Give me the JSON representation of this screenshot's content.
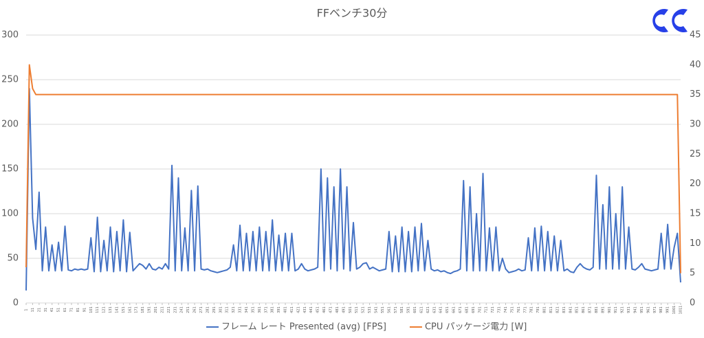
{
  "chart_data": {
    "type": "line",
    "title": "FFベンチ30分",
    "x": [
      1,
      6,
      11,
      16,
      21,
      26,
      31,
      36,
      41,
      46,
      51,
      56,
      61,
      66,
      71,
      76,
      81,
      86,
      91,
      96,
      101,
      106,
      111,
      116,
      121,
      126,
      131,
      136,
      141,
      146,
      151,
      156,
      161,
      166,
      171,
      176,
      181,
      186,
      191,
      196,
      201,
      206,
      211,
      216,
      221,
      226,
      231,
      236,
      241,
      246,
      251,
      256,
      261,
      266,
      271,
      276,
      281,
      286,
      291,
      296,
      301,
      306,
      311,
      316,
      321,
      326,
      331,
      336,
      341,
      346,
      351,
      356,
      361,
      366,
      371,
      376,
      381,
      386,
      391,
      396,
      401,
      406,
      411,
      416,
      421,
      426,
      431,
      436,
      441,
      446,
      451,
      456,
      461,
      466,
      471,
      476,
      481,
      486,
      491,
      496,
      501,
      506,
      511,
      516,
      521,
      526,
      531,
      536,
      541,
      546,
      551,
      556,
      561,
      566,
      571,
      576,
      581,
      586,
      591,
      596,
      601,
      606,
      611,
      616,
      621,
      626,
      631,
      636,
      641,
      646,
      651,
      656,
      661,
      666,
      671,
      676,
      681,
      686,
      691,
      696,
      701,
      706,
      711,
      716,
      721,
      726,
      731,
      736,
      741,
      746,
      751,
      756,
      761,
      766,
      771,
      776,
      781,
      786,
      791,
      796,
      801,
      806,
      811,
      816,
      821,
      826,
      831,
      836,
      841,
      846,
      851,
      856,
      861,
      866,
      871,
      876,
      881,
      886,
      891,
      896,
      901,
      906,
      911,
      916,
      921,
      926,
      931,
      936,
      941,
      946,
      951,
      956,
      961,
      966,
      971,
      976,
      981,
      986,
      991,
      996,
      1001,
      1006,
      1011
    ],
    "series": [
      {
        "name": "フレーム レート Presented (avg) [FPS]",
        "color": "#4472c4",
        "values": [
          14,
          240,
          95,
          60,
          124,
          36,
          85,
          36,
          65,
          36,
          68,
          36,
          86,
          37,
          36,
          38,
          37,
          38,
          37,
          38,
          73,
          35,
          96,
          35,
          70,
          36,
          85,
          35,
          80,
          36,
          93,
          35,
          79,
          36,
          40,
          44,
          42,
          38,
          44,
          38,
          37,
          40,
          38,
          44,
          38,
          154,
          36,
          140,
          36,
          84,
          36,
          126,
          36,
          131,
          38,
          37,
          38,
          36,
          35,
          34,
          35,
          36,
          37,
          40,
          65,
          36,
          87,
          36,
          78,
          36,
          80,
          36,
          85,
          36,
          80,
          36,
          93,
          36,
          76,
          36,
          78,
          36,
          78,
          36,
          38,
          44,
          38,
          36,
          37,
          38,
          40,
          150,
          36,
          140,
          38,
          130,
          36,
          150,
          38,
          130,
          36,
          90,
          38,
          40,
          44,
          45,
          38,
          40,
          38,
          36,
          37,
          38,
          80,
          35,
          75,
          35,
          85,
          35,
          80,
          35,
          85,
          36,
          89,
          36,
          70,
          38,
          36,
          37,
          35,
          36,
          34,
          33,
          35,
          36,
          38,
          137,
          36,
          130,
          36,
          100,
          36,
          145,
          36,
          84,
          36,
          85,
          36,
          50,
          38,
          34,
          35,
          36,
          38,
          36,
          37,
          73,
          36,
          84,
          36,
          86,
          36,
          80,
          36,
          75,
          36,
          70,
          36,
          38,
          35,
          34,
          40,
          44,
          40,
          38,
          37,
          40,
          143,
          38,
          110,
          38,
          130,
          38,
          100,
          38,
          130,
          38,
          85,
          38,
          37,
          40,
          44,
          38,
          37,
          36,
          37,
          38,
          78,
          38,
          88,
          38,
          62,
          78,
          23
        ]
      },
      {
        "name": "CPU パッケージ電力 [W]",
        "color": "#ed7d31",
        "axis": "y2",
        "values": [
          6,
          40,
          36,
          35,
          35,
          35,
          35,
          35,
          35,
          35,
          35,
          35,
          35,
          35,
          35,
          35,
          35,
          35,
          35,
          35,
          35,
          35,
          35,
          35,
          35,
          35,
          35,
          35,
          35,
          35,
          35,
          35,
          35,
          35,
          35,
          35,
          35,
          35,
          35,
          35,
          35,
          35,
          35,
          35,
          35,
          35,
          35,
          35,
          35,
          35,
          35,
          35,
          35,
          35,
          35,
          35,
          35,
          35,
          35,
          35,
          35,
          35,
          35,
          35,
          35,
          35,
          35,
          35,
          35,
          35,
          35,
          35,
          35,
          35,
          35,
          35,
          35,
          35,
          35,
          35,
          35,
          35,
          35,
          35,
          35,
          35,
          35,
          35,
          35,
          35,
          35,
          35,
          35,
          35,
          35,
          35,
          35,
          35,
          35,
          35,
          35,
          35,
          35,
          35,
          35,
          35,
          35,
          35,
          35,
          35,
          35,
          35,
          35,
          35,
          35,
          35,
          35,
          35,
          35,
          35,
          35,
          35,
          35,
          35,
          35,
          35,
          35,
          35,
          35,
          35,
          35,
          35,
          35,
          35,
          35,
          35,
          35,
          35,
          35,
          35,
          35,
          35,
          35,
          35,
          35,
          35,
          35,
          35,
          35,
          35,
          35,
          35,
          35,
          35,
          35,
          35,
          35,
          35,
          35,
          35,
          35,
          35,
          35,
          35,
          35,
          35,
          35,
          35,
          35,
          35,
          35,
          35,
          35,
          35,
          35,
          35,
          35,
          35,
          35,
          35,
          35,
          35,
          35,
          35,
          35,
          35,
          35,
          35,
          35,
          35,
          35,
          35,
          35,
          35,
          35,
          35,
          35,
          35,
          35,
          35,
          35,
          35,
          5
        ]
      }
    ],
    "xlim": [
      1,
      1011
    ],
    "xticks": [
      1,
      11,
      21,
      31,
      41,
      51,
      61,
      71,
      81,
      91,
      101,
      111,
      121,
      131,
      141,
      151,
      161,
      171,
      181,
      191,
      201,
      211,
      221,
      231,
      241,
      251,
      261,
      271,
      281,
      291,
      301,
      311,
      321,
      331,
      341,
      351,
      361,
      371,
      381,
      391,
      401,
      411,
      421,
      431,
      441,
      451,
      461,
      471,
      481,
      491,
      501,
      511,
      521,
      531,
      541,
      551,
      561,
      571,
      581,
      591,
      601,
      611,
      621,
      631,
      641,
      651,
      661,
      671,
      681,
      691,
      701,
      711,
      721,
      731,
      741,
      751,
      761,
      771,
      781,
      791,
      801,
      811,
      821,
      831,
      841,
      851,
      861,
      871,
      881,
      891,
      901,
      911,
      921,
      931,
      941,
      951,
      961,
      971,
      981,
      991,
      1001,
      1011
    ],
    "ylim": [
      0,
      300
    ],
    "yticks": [
      0,
      50,
      100,
      150,
      200,
      250,
      300
    ],
    "y2lim": [
      0,
      45
    ],
    "y2ticks": [
      0,
      5,
      10,
      15,
      20,
      25,
      30,
      35,
      40,
      45
    ],
    "grid": true,
    "legend": "bottom"
  }
}
